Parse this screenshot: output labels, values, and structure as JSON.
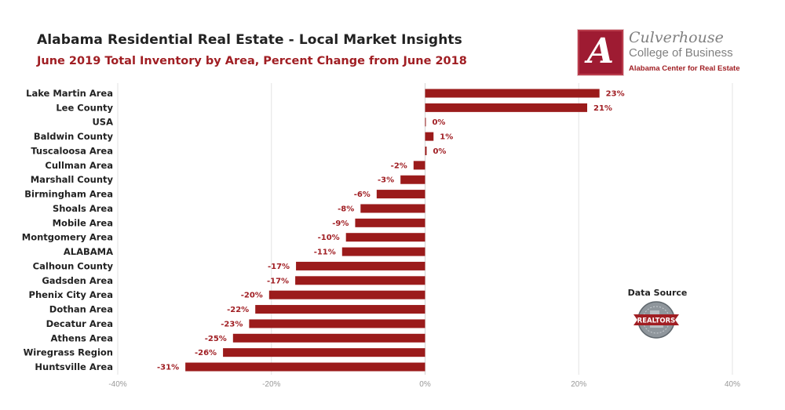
{
  "header": {
    "title": "Alabama Residential Real Estate - Local Market Insights",
    "subtitle": "June 2019 Total Inventory by Area, Percent Change from June 2018"
  },
  "logo": {
    "crest_letter": "A",
    "line1": "Culverhouse",
    "line2": "College of Business",
    "line3": "Alabama Center for Real Estate"
  },
  "data_source": {
    "label": "Data Source",
    "badge_text": "REALTORS"
  },
  "colors": {
    "bar": "#9b1b1b",
    "value_label": "#a01e23",
    "grid": "#e3e3e3"
  },
  "chart_data": {
    "type": "bar",
    "orientation": "horizontal",
    "categories": [
      "Lake Martin Area",
      "Lee County",
      "USA",
      "Baldwin County",
      "Tuscaloosa Area",
      "Cullman Area",
      "Marshall County",
      "Birmingham Area",
      "Shoals Area",
      "Mobile Area",
      "Montgomery Area",
      "ALABAMA",
      "Calhoun County",
      "Gadsden Area",
      "Phenix City Area",
      "Dothan Area",
      "Decatur Area",
      "Athens Area",
      "Wiregrass Region",
      "Huntsville Area"
    ],
    "values": [
      22.7,
      21.1,
      0.1,
      1.1,
      0.2,
      -1.5,
      -3.2,
      -6.3,
      -8.4,
      -9.1,
      -10.3,
      -10.8,
      -16.8,
      -16.9,
      -20.3,
      -22.1,
      -22.9,
      -25.0,
      -26.3,
      -31.2
    ],
    "value_labels": [
      "23%",
      "21%",
      "0%",
      "1%",
      "0%",
      "-2%",
      "-3%",
      "-6%",
      "-8%",
      "-9%",
      "-10%",
      "-11%",
      "-17%",
      "-17%",
      "-20%",
      "-22%",
      "-23%",
      "-25%",
      "-26%",
      "-31%"
    ],
    "xlim": [
      -40,
      40
    ],
    "xticks": [
      -40,
      -20,
      0,
      20,
      40
    ],
    "xtick_labels": [
      "-40%",
      "-20%",
      "0%",
      "20%",
      "40%"
    ],
    "grid": true,
    "legend": "none"
  }
}
